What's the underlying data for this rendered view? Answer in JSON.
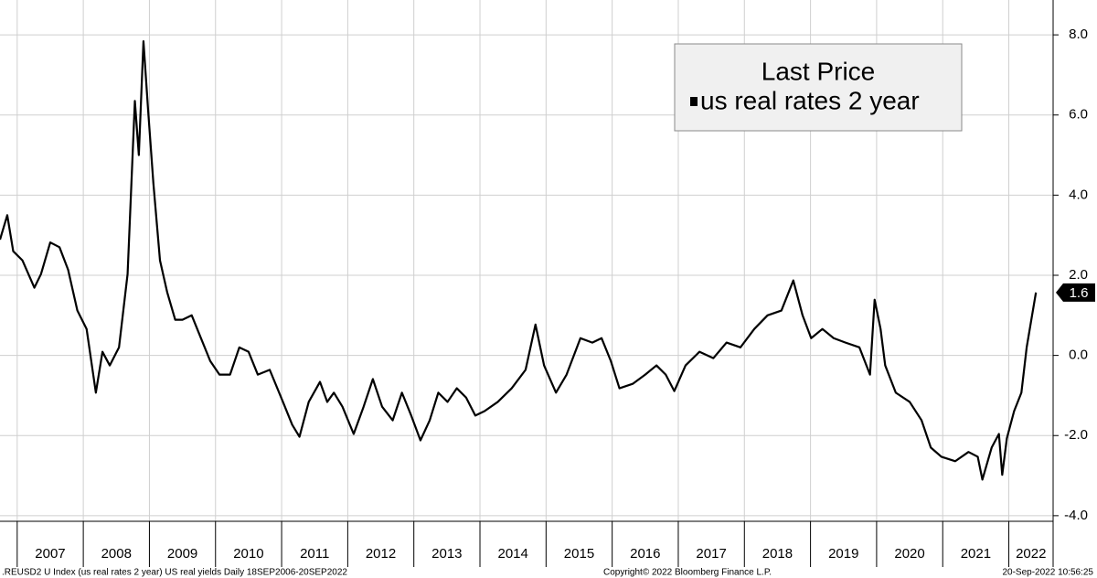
{
  "chart_data": {
    "type": "line",
    "legend_title": "Last Price",
    "legend": "upper right",
    "grid": true,
    "last_value_label": "1.6",
    "footer_left": ".REUSD2 U Index (us real rates 2 year) US real yields  Daily 18SEP2006-20SEP2022",
    "footer_center": "Copyright© 2022 Bloomberg Finance L.P.",
    "footer_right": "20-Sep-2022 10:56:25",
    "xlim": [
      2006.74,
      2022.67
    ],
    "xticks": [
      2007,
      2008,
      2009,
      2010,
      2011,
      2012,
      2013,
      2014,
      2015,
      2016,
      2017,
      2018,
      2019,
      2020,
      2021,
      2022
    ],
    "ylim": [
      -4.14,
      8.87
    ],
    "yticks": [
      {
        "value": 8,
        "label": "8.0"
      },
      {
        "value": 6,
        "label": "6.0"
      },
      {
        "value": 4,
        "label": "4.0"
      },
      {
        "value": 2,
        "label": "2.0"
      },
      {
        "value": 0,
        "label": "0.0"
      },
      {
        "value": -2,
        "label": "-2.0"
      },
      {
        "value": -4,
        "label": "-4.0"
      }
    ],
    "x": [
      2006.74,
      2006.85,
      2006.94,
      2007.08,
      2007.26,
      2007.36,
      2007.5,
      2007.64,
      2007.77,
      2007.91,
      2008.05,
      2008.19,
      2008.29,
      2008.4,
      2008.54,
      2008.67,
      2008.78,
      2008.84,
      2008.91,
      2008.98,
      2009.06,
      2009.16,
      2009.27,
      2009.39,
      2009.5,
      2009.64,
      2009.78,
      2009.92,
      2010.06,
      2010.22,
      2010.36,
      2010.5,
      2010.64,
      2010.82,
      2011.02,
      2011.16,
      2011.27,
      2011.41,
      2011.58,
      2011.69,
      2011.79,
      2011.92,
      2012.09,
      2012.24,
      2012.38,
      2012.52,
      2012.68,
      2012.82,
      2012.96,
      2013.1,
      2013.24,
      2013.37,
      2013.51,
      2013.65,
      2013.79,
      2013.93,
      2014.07,
      2014.27,
      2014.48,
      2014.69,
      2014.84,
      2014.97,
      2015.15,
      2015.31,
      2015.52,
      2015.7,
      2015.84,
      2015.98,
      2016.11,
      2016.31,
      2016.5,
      2016.67,
      2016.81,
      2016.94,
      2017.11,
      2017.32,
      2017.53,
      2017.73,
      2017.94,
      2018.15,
      2018.35,
      2018.56,
      2018.74,
      2018.88,
      2019.01,
      2019.18,
      2019.35,
      2019.53,
      2019.74,
      2019.9,
      2019.97,
      2020.06,
      2020.13,
      2020.29,
      2020.5,
      2020.68,
      2020.82,
      2020.98,
      2021.19,
      2021.39,
      2021.53,
      2021.6,
      2021.74,
      2021.85,
      2021.9,
      2021.97,
      2022.08,
      2022.19,
      2022.27,
      2022.41
    ],
    "series": [
      {
        "name": "us real rates 2 year",
        "color": "#000000",
        "values": [
          2.89,
          3.5,
          2.6,
          2.37,
          1.69,
          2.03,
          2.82,
          2.7,
          2.14,
          1.12,
          0.66,
          -0.93,
          0.09,
          -0.25,
          0.2,
          2.03,
          6.35,
          5.0,
          7.84,
          6.13,
          4.3,
          2.37,
          1.57,
          0.89,
          0.89,
          1.0,
          0.43,
          -0.14,
          -0.48,
          -0.48,
          0.2,
          0.09,
          -0.48,
          -0.36,
          -1.16,
          -1.73,
          -2.03,
          -1.16,
          -0.66,
          -1.16,
          -0.93,
          -1.28,
          -1.96,
          -1.28,
          -0.59,
          -1.28,
          -1.62,
          -0.93,
          -1.5,
          -2.12,
          -1.62,
          -0.93,
          -1.16,
          -0.82,
          -1.05,
          -1.5,
          -1.39,
          -1.16,
          -0.82,
          -0.36,
          0.77,
          -0.25,
          -0.93,
          -0.48,
          0.43,
          0.32,
          0.43,
          -0.14,
          -0.82,
          -0.71,
          -0.48,
          -0.25,
          -0.48,
          -0.89,
          -0.25,
          0.09,
          -0.07,
          0.32,
          0.2,
          0.66,
          1.0,
          1.12,
          1.87,
          1.0,
          0.43,
          0.66,
          0.43,
          0.32,
          0.2,
          -0.48,
          1.39,
          0.66,
          -0.25,
          -0.93,
          -1.16,
          -1.62,
          -2.3,
          -2.53,
          -2.64,
          -2.41,
          -2.53,
          -3.1,
          -2.3,
          -1.96,
          -2.98,
          -2.07,
          -1.39,
          -0.93,
          0.2,
          1.57
        ]
      }
    ]
  }
}
